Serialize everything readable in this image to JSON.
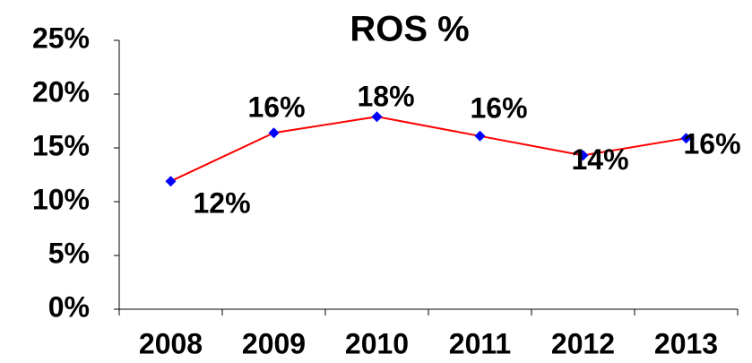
{
  "chart_data": {
    "type": "line",
    "title": "ROS %",
    "categories": [
      "2008",
      "2009",
      "2010",
      "2011",
      "2012",
      "2013"
    ],
    "values": [
      11.9,
      16.4,
      17.9,
      16.1,
      14.3,
      15.9
    ],
    "value_labels": [
      "12%",
      "16%",
      "18%",
      "16%",
      "14%",
      "16%"
    ],
    "line_color": "#ff0000",
    "marker_color": "#0000ff",
    "ylim": [
      0,
      25
    ],
    "yticks": [
      {
        "value": 0,
        "label": "0%"
      },
      {
        "value": 5,
        "label": "5%"
      },
      {
        "value": 10,
        "label": "10%"
      },
      {
        "value": 15,
        "label": "15%"
      },
      {
        "value": 20,
        "label": "20%"
      },
      {
        "value": 25,
        "label": "25%"
      }
    ],
    "grid": false
  }
}
